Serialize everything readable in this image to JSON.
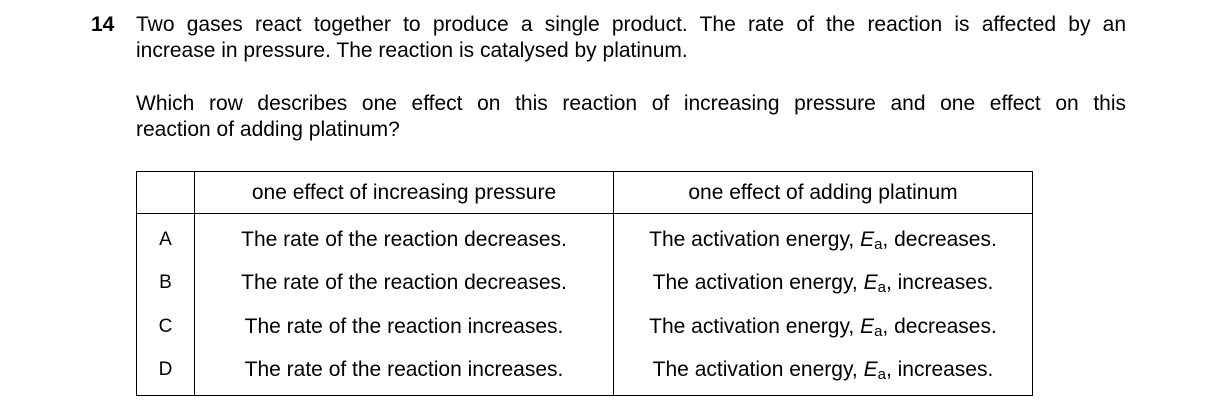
{
  "question": {
    "number": "14",
    "stem_lines": [
      "Two gases react together to produce a single product. The rate of the reaction is affected by an",
      "increase in pressure. The reaction is catalysed by platinum."
    ],
    "prompt_lines": [
      "Which row describes one effect on this reaction of increasing pressure and one effect on this",
      "reaction of adding platinum?"
    ]
  },
  "table": {
    "headers": {
      "letter": "",
      "pressure": "one effect of increasing pressure",
      "platinum": "one effect of adding platinum"
    },
    "rows": [
      {
        "letter": "A",
        "pressure": "The rate of the reaction decreases.",
        "platinum_prefix": "The activation energy, ",
        "symbol": "E",
        "subscript": "a",
        "platinum_suffix": ", decreases."
      },
      {
        "letter": "B",
        "pressure": "The rate of the reaction decreases.",
        "platinum_prefix": "The activation energy, ",
        "symbol": "E",
        "subscript": "a",
        "platinum_suffix": ", increases."
      },
      {
        "letter": "C",
        "pressure": "The rate of the reaction increases.",
        "platinum_prefix": "The activation energy, ",
        "symbol": "E",
        "subscript": "a",
        "platinum_suffix": ", decreases."
      },
      {
        "letter": "D",
        "pressure": "The rate of the reaction increases.",
        "platinum_prefix": "The activation energy, ",
        "symbol": "E",
        "subscript": "a",
        "platinum_suffix": ", increases."
      }
    ]
  }
}
